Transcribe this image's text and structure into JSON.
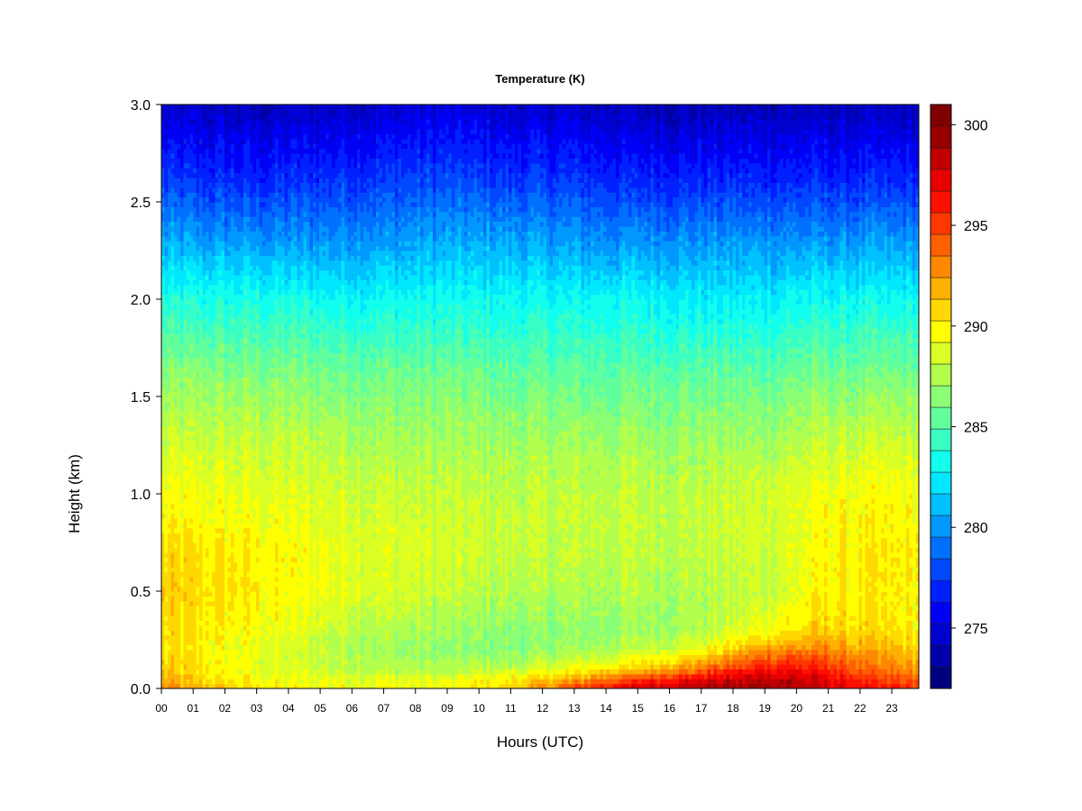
{
  "chart_data": {
    "type": "heatmap",
    "title": "Temperature (K)",
    "xlabel": "Hours (UTC)",
    "ylabel": "Height (km)",
    "x_ticks": [
      "00",
      "01",
      "02",
      "03",
      "04",
      "05",
      "06",
      "07",
      "08",
      "09",
      "10",
      "11",
      "12",
      "13",
      "14",
      "15",
      "16",
      "17",
      "18",
      "19",
      "20",
      "21",
      "22",
      "23"
    ],
    "xlim": [
      0,
      23.85
    ],
    "y_ticks": [
      0.0,
      0.5,
      1.0,
      1.5,
      2.0,
      2.5,
      3.0
    ],
    "y_tick_labels": [
      "0.0",
      "0.5",
      "1.0",
      "1.5",
      "2.0",
      "2.5",
      "3.0"
    ],
    "ylim": [
      0,
      3.0
    ],
    "colorbar": {
      "range": [
        272,
        301
      ],
      "ticks": [
        275,
        280,
        285,
        290,
        295,
        300
      ],
      "tick_labels": [
        "275",
        "280",
        "285",
        "290",
        "295",
        "300"
      ],
      "colors": [
        "#00007f",
        "#0000a8",
        "#0000cf",
        "#0000f6",
        "#0020ff",
        "#0048ff",
        "#0070ff",
        "#0098ff",
        "#00c0ff",
        "#00e8ff",
        "#12ffed",
        "#3affc5",
        "#62ff9d",
        "#8aff75",
        "#b2ff4d",
        "#daff25",
        "#ffff00",
        "#ffd800",
        "#ffb000",
        "#ff8800",
        "#ff6000",
        "#ff3800",
        "#ff1000",
        "#e80000",
        "#c00000",
        "#980000",
        "#7f0000"
      ]
    },
    "profile_heights_km": [
      0.0,
      0.05,
      0.1,
      0.2,
      0.3,
      0.5,
      0.7,
      1.0,
      1.3,
      1.6,
      2.0,
      2.3,
      2.6,
      3.0
    ],
    "profiles": [
      {
        "hour": 0,
        "temps_k": [
          293,
          291.5,
          291,
          290.5,
          290.5,
          291,
          290.5,
          289.5,
          288,
          286.5,
          283.5,
          280.5,
          277.5,
          274.5
        ]
      },
      {
        "hour": 3,
        "temps_k": [
          290,
          289.5,
          289,
          289,
          289.5,
          290,
          290,
          289,
          288,
          286.5,
          283.5,
          280,
          277,
          274
        ]
      },
      {
        "hour": 6,
        "temps_k": [
          289.5,
          289,
          288,
          287.5,
          288,
          289,
          289,
          288.5,
          287.5,
          286,
          283,
          280,
          277.5,
          274.5
        ]
      },
      {
        "hour": 9,
        "temps_k": [
          289.5,
          289,
          287.5,
          286.5,
          287,
          288,
          288.5,
          288,
          287,
          286,
          283,
          280.5,
          278,
          275
        ]
      },
      {
        "hour": 11,
        "temps_k": [
          291,
          290,
          288,
          286.5,
          286.5,
          287.5,
          288,
          288,
          287,
          285.5,
          283,
          280.5,
          277.5,
          274.5
        ]
      },
      {
        "hour": 13,
        "temps_k": [
          295,
          292,
          289.5,
          287,
          286.5,
          287.5,
          288,
          288,
          287,
          285.5,
          283,
          280,
          277.5,
          274.5
        ]
      },
      {
        "hour": 15,
        "temps_k": [
          298,
          295,
          291,
          288,
          287,
          287.5,
          288,
          288,
          287,
          285.5,
          283,
          280,
          277,
          274
        ]
      },
      {
        "hour": 17,
        "temps_k": [
          299,
          297,
          293.5,
          289.5,
          287.5,
          287.5,
          288,
          288,
          287,
          285.5,
          282.5,
          280,
          277,
          274
        ]
      },
      {
        "hour": 19,
        "temps_k": [
          299.5,
          298.5,
          296.5,
          292.5,
          289.5,
          288,
          288.5,
          288.5,
          287,
          285.5,
          282.5,
          280,
          277,
          274
        ]
      },
      {
        "hour": 20,
        "temps_k": [
          299,
          298,
          296.5,
          293,
          290.5,
          289,
          289,
          289,
          287.5,
          286,
          283,
          280,
          277,
          274
        ]
      },
      {
        "hour": 21,
        "temps_k": [
          298,
          297,
          295.5,
          293,
          291,
          290,
          290,
          289.5,
          288,
          286,
          283,
          280,
          277,
          274
        ]
      },
      {
        "hour": 22,
        "temps_k": [
          296.5,
          295.5,
          294,
          292,
          290.5,
          290,
          290,
          289.5,
          288,
          286,
          283,
          280,
          277,
          274
        ]
      },
      {
        "hour": 23.85,
        "temps_k": [
          295,
          294,
          292.5,
          291,
          290,
          290,
          290,
          289.5,
          288,
          286,
          283,
          280,
          277,
          274
        ]
      }
    ]
  }
}
